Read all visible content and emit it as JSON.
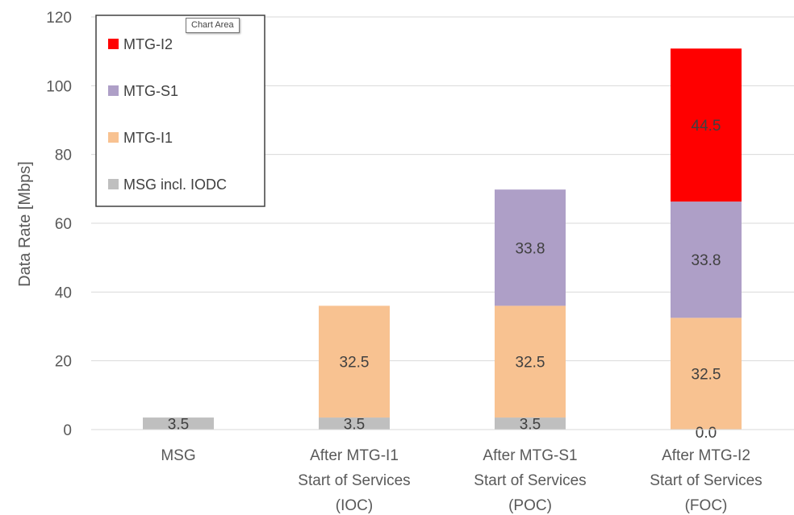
{
  "tooltip": "Chart Area",
  "chart_data": {
    "type": "bar",
    "stacked": true,
    "categories": [
      [
        "MSG"
      ],
      [
        "After MTG-I1",
        "Start of Services",
        "(IOC)"
      ],
      [
        "After MTG-S1",
        "Start of Services",
        "(POC)"
      ],
      [
        "After MTG-I2",
        "Start of Services",
        "(FOC)"
      ]
    ],
    "series": [
      {
        "name": "MSG incl. IODC",
        "color": "#bfbfbf",
        "values": [
          3.5,
          3.5,
          3.5,
          0.0
        ],
        "labels": [
          "3.5",
          "3.5",
          "3.5",
          "0.0"
        ]
      },
      {
        "name": "MTG-I1",
        "color": "#f8c291",
        "values": [
          null,
          32.5,
          32.5,
          32.5
        ],
        "labels": [
          null,
          "32.5",
          "32.5",
          "32.5"
        ]
      },
      {
        "name": "MTG-S1",
        "color": "#ae9fc7",
        "values": [
          null,
          null,
          33.8,
          33.8
        ],
        "labels": [
          null,
          null,
          "33.8",
          "33.8"
        ]
      },
      {
        "name": "MTG-I2",
        "color": "#ff0000",
        "values": [
          null,
          null,
          null,
          44.5
        ],
        "labels": [
          null,
          null,
          null,
          "44.5"
        ]
      }
    ],
    "ylabel": "Data Rate [Mbps]",
    "xlabel": "",
    "ylim": [
      0,
      120
    ],
    "yticks": [
      0,
      20,
      40,
      60,
      80,
      100,
      120
    ],
    "grid": true,
    "legend_position": "top-left",
    "legend_order": [
      "MTG-I2",
      "MTG-S1",
      "MTG-I1",
      "MSG incl. IODC"
    ]
  }
}
